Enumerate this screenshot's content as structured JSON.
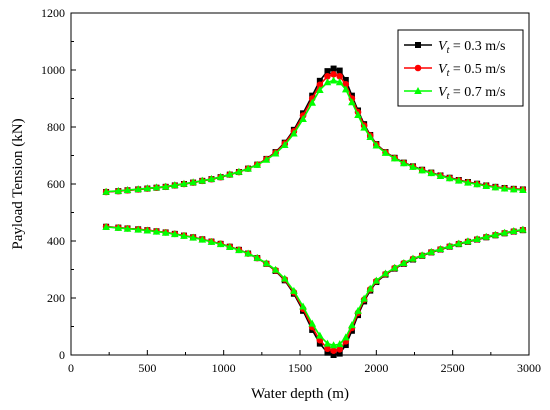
{
  "chart_data": {
    "type": "line",
    "title": "",
    "xlabel": "Water depth (m)",
    "ylabel": "Payload Tension (kN)",
    "xlim": [
      0,
      3000
    ],
    "ylim": [
      0,
      1200
    ],
    "x_ticks": [
      "0",
      "500",
      "1000",
      "1500",
      "2000",
      "2500",
      "3000"
    ],
    "y_ticks": [
      "0",
      "200",
      "400",
      "600",
      "800",
      "1000",
      "1200"
    ],
    "grid": false,
    "legend_position": "top-right",
    "series": [
      {
        "name": "Vt = 0.3 m/s",
        "legend_var": "V",
        "legend_sub": "t",
        "legend_value": " = 0.3 m/s",
        "color": "#000000",
        "marker": "square",
        "upper": {
          "x": [
            230,
            310,
            370,
            440,
            500,
            560,
            620,
            680,
            740,
            800,
            860,
            920,
            980,
            1040,
            1100,
            1160,
            1220,
            1280,
            1340,
            1400,
            1460,
            1520,
            1580,
            1630,
            1680,
            1720,
            1760,
            1800,
            1840,
            1880,
            1920,
            1960,
            2000,
            2060,
            2120,
            2180,
            2240,
            2300,
            2360,
            2420,
            2480,
            2540,
            2600,
            2660,
            2720,
            2780,
            2840,
            2900,
            2960
          ],
          "y": [
            572,
            575,
            578,
            581,
            584,
            587,
            590,
            595,
            600,
            605,
            611,
            617,
            624,
            633,
            642,
            654,
            668,
            688,
            712,
            745,
            790,
            848,
            910,
            962,
            996,
            1005,
            998,
            965,
            910,
            858,
            810,
            772,
            740,
            712,
            692,
            675,
            662,
            650,
            640,
            630,
            622,
            614,
            607,
            601,
            595,
            590,
            586,
            583,
            581
          ]
        },
        "lower": {
          "x": [
            230,
            310,
            370,
            440,
            500,
            560,
            620,
            680,
            740,
            800,
            860,
            920,
            980,
            1040,
            1100,
            1160,
            1220,
            1280,
            1340,
            1400,
            1460,
            1520,
            1580,
            1630,
            1680,
            1720,
            1760,
            1800,
            1840,
            1880,
            1920,
            1960,
            2000,
            2060,
            2120,
            2180,
            2240,
            2300,
            2360,
            2420,
            2480,
            2540,
            2600,
            2660,
            2720,
            2780,
            2840,
            2900,
            2960
          ],
          "y": [
            450,
            447,
            444,
            441,
            438,
            434,
            430,
            425,
            419,
            413,
            406,
            398,
            390,
            380,
            369,
            356,
            340,
            320,
            295,
            262,
            215,
            155,
            88,
            40,
            8,
            0,
            5,
            35,
            85,
            140,
            188,
            226,
            256,
            282,
            303,
            320,
            335,
            348,
            360,
            370,
            380,
            389,
            397,
            405,
            413,
            420,
            427,
            433,
            438
          ]
        }
      },
      {
        "name": "Vt = 0.5 m/s",
        "legend_var": "V",
        "legend_sub": "t",
        "legend_value": " = 0.5 m/s",
        "color": "#ff0000",
        "marker": "circle",
        "upper": {
          "x": [
            230,
            310,
            370,
            440,
            500,
            560,
            620,
            680,
            740,
            800,
            860,
            920,
            980,
            1040,
            1100,
            1160,
            1220,
            1280,
            1340,
            1400,
            1460,
            1520,
            1580,
            1630,
            1680,
            1720,
            1760,
            1800,
            1840,
            1880,
            1920,
            1960,
            2000,
            2060,
            2120,
            2180,
            2240,
            2300,
            2360,
            2420,
            2480,
            2540,
            2600,
            2660,
            2720,
            2780,
            2840,
            2900,
            2960
          ],
          "y": [
            572,
            575,
            578,
            581,
            584,
            587,
            590,
            595,
            600,
            605,
            611,
            617,
            624,
            633,
            642,
            654,
            668,
            687,
            710,
            742,
            785,
            840,
            900,
            948,
            978,
            985,
            978,
            950,
            900,
            852,
            805,
            770,
            738,
            711,
            691,
            674,
            661,
            649,
            639,
            629,
            621,
            613,
            606,
            600,
            594,
            589,
            585,
            582,
            580
          ]
        },
        "lower": {
          "x": [
            230,
            310,
            370,
            440,
            500,
            560,
            620,
            680,
            740,
            800,
            860,
            920,
            980,
            1040,
            1100,
            1160,
            1220,
            1280,
            1340,
            1400,
            1460,
            1520,
            1580,
            1630,
            1680,
            1720,
            1760,
            1800,
            1840,
            1880,
            1920,
            1960,
            2000,
            2060,
            2120,
            2180,
            2240,
            2300,
            2360,
            2420,
            2480,
            2540,
            2600,
            2660,
            2720,
            2780,
            2840,
            2900,
            2960
          ],
          "y": [
            450,
            447,
            444,
            441,
            438,
            434,
            430,
            425,
            419,
            413,
            406,
            398,
            390,
            380,
            369,
            356,
            340,
            321,
            297,
            265,
            220,
            162,
            98,
            52,
            22,
            15,
            20,
            48,
            95,
            148,
            194,
            230,
            259,
            284,
            305,
            322,
            337,
            349,
            361,
            371,
            381,
            390,
            398,
            406,
            414,
            421,
            428,
            434,
            439
          ]
        }
      },
      {
        "name": "Vt = 0.7 m/s",
        "legend_var": "V",
        "legend_sub": "t",
        "legend_value": " = 0.7 m/s",
        "color": "#00ff00",
        "marker": "triangle",
        "upper": {
          "x": [
            230,
            310,
            370,
            440,
            500,
            560,
            620,
            680,
            740,
            800,
            860,
            920,
            980,
            1040,
            1100,
            1160,
            1220,
            1280,
            1340,
            1400,
            1460,
            1520,
            1580,
            1630,
            1680,
            1720,
            1760,
            1800,
            1840,
            1880,
            1920,
            1960,
            2000,
            2060,
            2120,
            2180,
            2240,
            2300,
            2360,
            2420,
            2480,
            2540,
            2600,
            2660,
            2720,
            2780,
            2840,
            2900,
            2960
          ],
          "y": [
            573,
            576,
            579,
            582,
            585,
            588,
            591,
            596,
            601,
            606,
            612,
            618,
            625,
            634,
            643,
            654,
            667,
            685,
            707,
            737,
            777,
            828,
            885,
            930,
            957,
            963,
            957,
            932,
            887,
            842,
            798,
            765,
            735,
            709,
            690,
            673,
            660,
            648,
            638,
            628,
            620,
            612,
            605,
            599,
            593,
            588,
            584,
            581,
            579
          ]
        },
        "lower": {
          "x": [
            230,
            310,
            370,
            440,
            500,
            560,
            620,
            680,
            740,
            800,
            860,
            920,
            980,
            1040,
            1100,
            1160,
            1220,
            1280,
            1340,
            1400,
            1460,
            1520,
            1580,
            1630,
            1680,
            1720,
            1760,
            1800,
            1840,
            1880,
            1920,
            1960,
            2000,
            2060,
            2120,
            2180,
            2240,
            2300,
            2360,
            2420,
            2480,
            2540,
            2600,
            2660,
            2720,
            2780,
            2840,
            2900,
            2960
          ],
          "y": [
            449,
            446,
            443,
            440,
            437,
            433,
            429,
            424,
            418,
            412,
            405,
            397,
            389,
            379,
            368,
            356,
            341,
            322,
            299,
            268,
            225,
            170,
            110,
            68,
            40,
            34,
            38,
            62,
            105,
            155,
            198,
            233,
            261,
            286,
            306,
            323,
            338,
            350,
            362,
            372,
            382,
            391,
            399,
            407,
            415,
            422,
            429,
            435,
            440
          ]
        }
      }
    ]
  }
}
